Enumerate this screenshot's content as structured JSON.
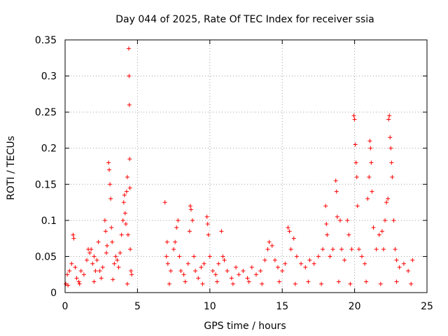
{
  "chart_data": {
    "type": "scatter",
    "title": "Day 044 of 2025, Rate Of TEC Index for receiver ssia",
    "xlabel": "GPS time / hours",
    "ylabel": "ROTI / TECUs",
    "xlim": [
      0,
      25
    ],
    "ylim": [
      0,
      0.35
    ],
    "xticks": [
      0,
      5,
      10,
      15,
      20,
      25
    ],
    "xtick_labels": [
      "0",
      "5",
      "10",
      "15",
      "20",
      "25"
    ],
    "yticks": [
      0,
      0.05,
      0.1,
      0.15,
      0.2,
      0.25,
      0.3,
      0.35
    ],
    "ytick_labels": [
      "0",
      "0.05",
      "0.1",
      "0.15",
      "0.2",
      "0.25",
      "0.3",
      "0.35"
    ],
    "grid": true,
    "marker": "+",
    "color": "#ff0000",
    "series": [
      {
        "name": "ROTI",
        "points": [
          [
            0.05,
            0.012
          ],
          [
            0.15,
            0.025
          ],
          [
            0.3,
            0.03
          ],
          [
            0.45,
            0.04
          ],
          [
            0.55,
            0.08
          ],
          [
            0.6,
            0.075
          ],
          [
            0.7,
            0.035
          ],
          [
            0.8,
            0.02
          ],
          [
            0.95,
            0.015
          ],
          [
            1.1,
            0.03
          ],
          [
            1.3,
            0.025
          ],
          [
            1.5,
            0.045
          ],
          [
            1.6,
            0.06
          ],
          [
            1.7,
            0.055
          ],
          [
            1.8,
            0.06
          ],
          [
            1.9,
            0.04
          ],
          [
            2.0,
            0.05
          ],
          [
            2.1,
            0.03
          ],
          [
            2.2,
            0.045
          ],
          [
            2.3,
            0.07
          ],
          [
            2.4,
            0.03
          ],
          [
            2.5,
            0.02
          ],
          [
            2.6,
            0.035
          ],
          [
            2.75,
            0.1
          ],
          [
            2.8,
            0.085
          ],
          [
            2.85,
            0.055
          ],
          [
            2.9,
            0.065
          ],
          [
            3.0,
            0.18
          ],
          [
            3.05,
            0.17
          ],
          [
            3.1,
            0.15
          ],
          [
            3.15,
            0.13
          ],
          [
            3.2,
            0.09
          ],
          [
            3.25,
            0.07
          ],
          [
            3.4,
            0.04
          ],
          [
            3.5,
            0.05
          ],
          [
            3.6,
            0.045
          ],
          [
            3.7,
            0.035
          ],
          [
            3.8,
            0.055
          ],
          [
            3.9,
            0.08
          ],
          [
            4.0,
            0.1
          ],
          [
            4.05,
            0.125
          ],
          [
            4.1,
            0.135
          ],
          [
            4.15,
            0.11
          ],
          [
            4.2,
            0.095
          ],
          [
            4.25,
            0.14
          ],
          [
            4.3,
            0.16
          ],
          [
            4.35,
            0.08
          ],
          [
            4.4,
            0.338
          ],
          [
            4.42,
            0.3
          ],
          [
            4.44,
            0.26
          ],
          [
            4.46,
            0.185
          ],
          [
            4.48,
            0.145
          ],
          [
            4.5,
            0.06
          ],
          [
            4.55,
            0.03
          ],
          [
            4.6,
            0.025
          ],
          [
            6.9,
            0.125
          ],
          [
            7.0,
            0.05
          ],
          [
            7.05,
            0.07
          ],
          [
            7.1,
            0.04
          ],
          [
            7.3,
            0.03
          ],
          [
            7.5,
            0.06
          ],
          [
            7.6,
            0.07
          ],
          [
            7.7,
            0.09
          ],
          [
            7.8,
            0.1
          ],
          [
            7.9,
            0.05
          ],
          [
            8.0,
            0.03
          ],
          [
            8.2,
            0.025
          ],
          [
            8.5,
            0.04
          ],
          [
            8.6,
            0.085
          ],
          [
            8.65,
            0.12
          ],
          [
            8.7,
            0.115
          ],
          [
            8.8,
            0.1
          ],
          [
            8.9,
            0.05
          ],
          [
            9.0,
            0.03
          ],
          [
            9.2,
            0.02
          ],
          [
            9.4,
            0.035
          ],
          [
            9.6,
            0.04
          ],
          [
            9.8,
            0.105
          ],
          [
            9.85,
            0.095
          ],
          [
            9.9,
            0.08
          ],
          [
            10.0,
            0.05
          ],
          [
            10.2,
            0.03
          ],
          [
            10.4,
            0.025
          ],
          [
            10.6,
            0.04
          ],
          [
            10.8,
            0.085
          ],
          [
            10.9,
            0.05
          ],
          [
            11.0,
            0.045
          ],
          [
            11.2,
            0.03
          ],
          [
            11.5,
            0.02
          ],
          [
            11.8,
            0.035
          ],
          [
            12.0,
            0.025
          ],
          [
            12.3,
            0.03
          ],
          [
            12.6,
            0.02
          ],
          [
            12.9,
            0.035
          ],
          [
            13.2,
            0.025
          ],
          [
            13.5,
            0.03
          ],
          [
            13.8,
            0.045
          ],
          [
            14.0,
            0.06
          ],
          [
            14.1,
            0.07
          ],
          [
            14.3,
            0.065
          ],
          [
            14.5,
            0.045
          ],
          [
            14.7,
            0.035
          ],
          [
            15.0,
            0.03
          ],
          [
            15.2,
            0.04
          ],
          [
            15.4,
            0.09
          ],
          [
            15.5,
            0.085
          ],
          [
            15.6,
            0.06
          ],
          [
            15.8,
            0.075
          ],
          [
            16.0,
            0.05
          ],
          [
            16.3,
            0.04
          ],
          [
            16.6,
            0.035
          ],
          [
            16.9,
            0.045
          ],
          [
            17.2,
            0.04
          ],
          [
            17.5,
            0.05
          ],
          [
            17.8,
            0.06
          ],
          [
            18.0,
            0.12
          ],
          [
            18.05,
            0.095
          ],
          [
            18.1,
            0.08
          ],
          [
            18.3,
            0.05
          ],
          [
            18.5,
            0.06
          ],
          [
            18.7,
            0.155
          ],
          [
            18.75,
            0.14
          ],
          [
            18.8,
            0.105
          ],
          [
            19.0,
            0.1
          ],
          [
            19.1,
            0.06
          ],
          [
            19.3,
            0.045
          ],
          [
            19.5,
            0.1
          ],
          [
            19.6,
            0.08
          ],
          [
            19.8,
            0.06
          ],
          [
            19.95,
            0.245
          ],
          [
            20.0,
            0.24
          ],
          [
            20.05,
            0.205
          ],
          [
            20.1,
            0.18
          ],
          [
            20.15,
            0.16
          ],
          [
            20.2,
            0.12
          ],
          [
            20.3,
            0.06
          ],
          [
            20.5,
            0.05
          ],
          [
            20.7,
            0.04
          ],
          [
            20.9,
            0.13
          ],
          [
            21.0,
            0.16
          ],
          [
            21.05,
            0.21
          ],
          [
            21.1,
            0.2
          ],
          [
            21.15,
            0.18
          ],
          [
            21.2,
            0.14
          ],
          [
            21.3,
            0.09
          ],
          [
            21.5,
            0.06
          ],
          [
            21.7,
            0.08
          ],
          [
            21.9,
            0.085
          ],
          [
            22.0,
            0.06
          ],
          [
            22.1,
            0.1
          ],
          [
            22.2,
            0.125
          ],
          [
            22.3,
            0.13
          ],
          [
            22.35,
            0.24
          ],
          [
            22.4,
            0.245
          ],
          [
            22.45,
            0.215
          ],
          [
            22.5,
            0.2
          ],
          [
            22.55,
            0.18
          ],
          [
            22.6,
            0.16
          ],
          [
            22.7,
            0.1
          ],
          [
            22.8,
            0.06
          ],
          [
            22.9,
            0.045
          ],
          [
            23.1,
            0.035
          ],
          [
            23.4,
            0.04
          ],
          [
            23.7,
            0.03
          ],
          [
            24.0,
            0.045
          ],
          [
            0.2,
            0.01
          ],
          [
            1.0,
            0.012
          ],
          [
            2.0,
            0.015
          ],
          [
            3.3,
            0.018
          ],
          [
            4.3,
            0.012
          ],
          [
            7.2,
            0.012
          ],
          [
            8.3,
            0.015
          ],
          [
            9.5,
            0.012
          ],
          [
            10.5,
            0.015
          ],
          [
            11.6,
            0.012
          ],
          [
            12.7,
            0.015
          ],
          [
            13.6,
            0.012
          ],
          [
            14.8,
            0.015
          ],
          [
            15.9,
            0.012
          ],
          [
            16.8,
            0.015
          ],
          [
            17.7,
            0.012
          ],
          [
            18.9,
            0.015
          ],
          [
            19.7,
            0.012
          ],
          [
            20.8,
            0.015
          ],
          [
            21.8,
            0.012
          ],
          [
            22.9,
            0.015
          ],
          [
            23.9,
            0.012
          ]
        ]
      }
    ]
  }
}
